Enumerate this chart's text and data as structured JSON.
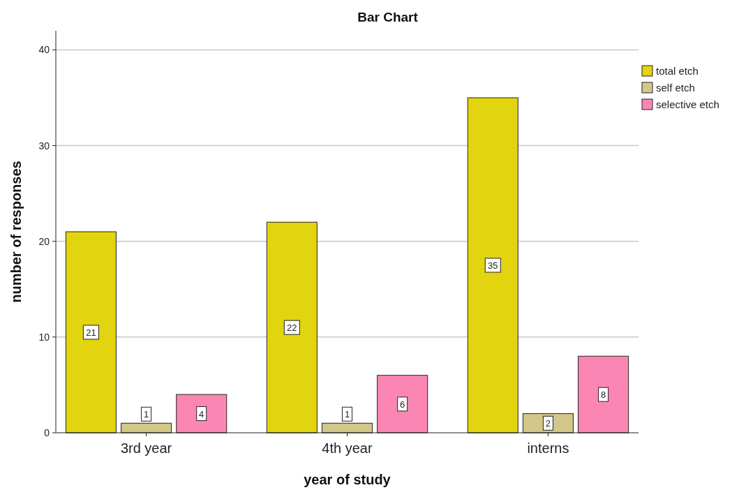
{
  "chart_data": {
    "type": "bar",
    "title": "Bar Chart",
    "xlabel": "year of study",
    "ylabel": "number of responses",
    "categories": [
      "3rd year",
      "4th year",
      "interns"
    ],
    "series": [
      {
        "name": "total etch",
        "color": "#e2d40e",
        "values": [
          21,
          22,
          35
        ]
      },
      {
        "name": "self etch",
        "color": "#d3c78a",
        "values": [
          1,
          1,
          2
        ]
      },
      {
        "name": "selective etch",
        "color": "#fb86b3",
        "values": [
          4,
          6,
          8
        ]
      }
    ],
    "ylim": [
      0,
      42
    ],
    "yticks": [
      0,
      10,
      20,
      30,
      40
    ],
    "grid": "y",
    "legend": "right",
    "data_labels": true
  }
}
